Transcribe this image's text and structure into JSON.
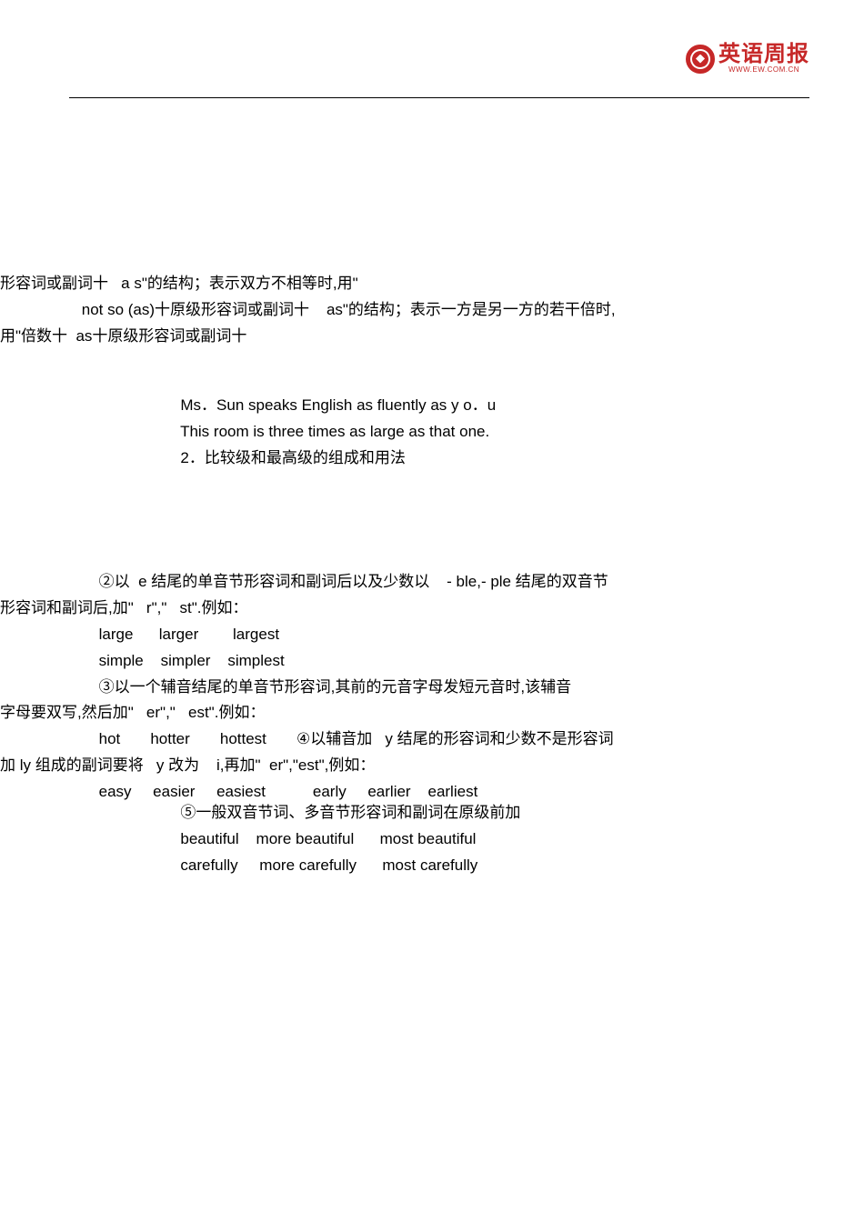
{
  "logo": {
    "text": "英语周报",
    "url": "WWW.EW.COM.CN"
  },
  "block1": {
    "l1": "形容词或副词十   a s\"的结构；表示双方不相等时,用\"",
    "l2": "                   not so (as)十原级形容词或副词十    as\"的结构；表示一方是另一方的若干倍时,",
    "l3": "用\"倍数十  as十原级形容词或副词十"
  },
  "block2": {
    "l1": "                                          Ms．Sun speaks English as fluently as y o．u",
    "l2": "                                          This room is three times as large as that one.",
    "l3": "                                          2．比较级和最高级的组成和用法"
  },
  "block3": {
    "l1": "                       ②以  e 结尾的单音节形容词和副词后以及少数以    - ble,- ple 结尾的双音节",
    "l2": "形容词和副词后,加\"   r\",\"   st\".例如：",
    "l3": "                       large      larger        largest",
    "l4": "                       simple    simpler    simplest",
    "l5": "                       ③以一个辅音结尾的单音节形容词,其前的元音字母发短元音时,该辅音",
    "l6": "字母要双写,然后加\"   er\",\"   est\".例如：",
    "l7": "                       hot       hotter       hottest       ④以辅音加   y 结尾的形容词和少数不是形容词",
    "l8": "加 ly 组成的副词要将   y 改为    i,再加\"  er\",\"est\",例如：",
    "l9": "                       easy     easier     easiest           early     earlier    earliest"
  },
  "block4": {
    "l1": "                                          ⑤一般双音节词、多音节形容词和副词在原级前加",
    "l2": "                                          beautiful    more beautiful      most beautiful",
    "l3": "                                          carefully     more carefully      most carefully"
  }
}
